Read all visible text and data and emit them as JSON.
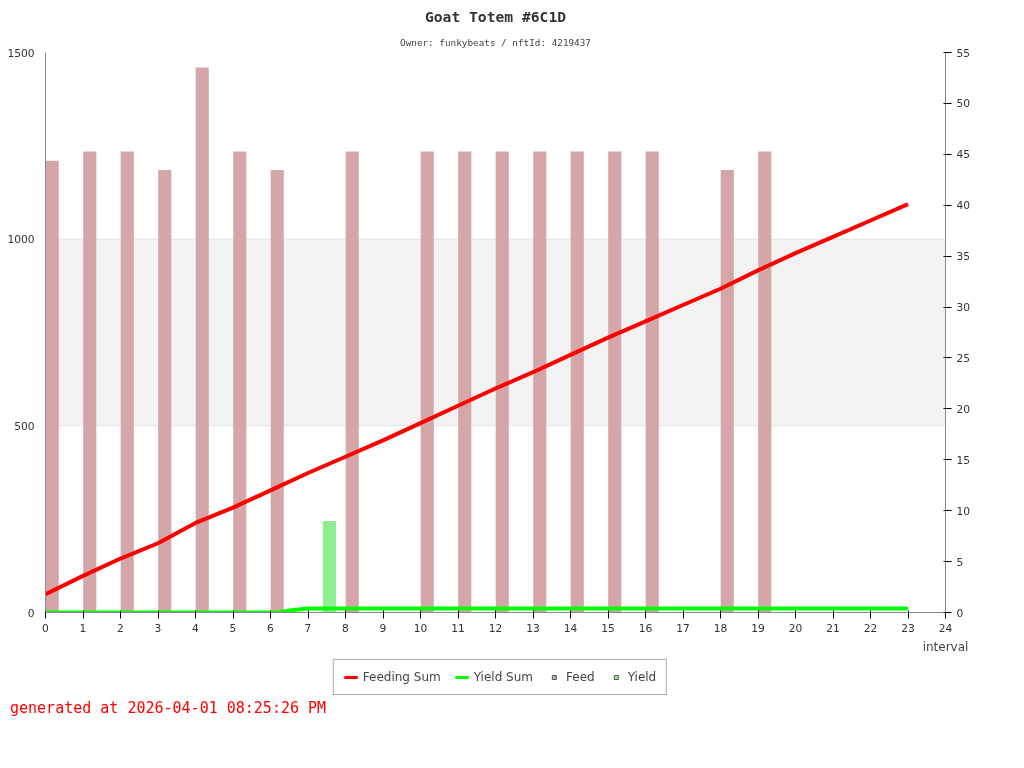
{
  "chart_data": {
    "type": "bar",
    "title": "Goat Totem #6C1D",
    "subtitle": "Owner: funkybeats / nftId: 4219437",
    "xlabel": "interval",
    "annotations": [
      "generated at 2026-04-01 08:25:26 PM"
    ],
    "xlim": [
      0,
      24
    ],
    "xticks": [
      0,
      1,
      2,
      3,
      4,
      5,
      6,
      7,
      8,
      9,
      10,
      11,
      12,
      13,
      14,
      15,
      16,
      17,
      18,
      19,
      20,
      21,
      22,
      23,
      24
    ],
    "ylim": [
      0,
      1500
    ],
    "yticks": [
      0,
      500,
      1000,
      1500
    ],
    "y2lim": [
      0,
      55
    ],
    "y2ticks": [
      0,
      5,
      10,
      15,
      20,
      25,
      30,
      35,
      40,
      45,
      50,
      55
    ],
    "grid": "y",
    "legend": "bottom",
    "bands": [
      {
        "axis": "y",
        "from": 500,
        "to": 1000,
        "color": "#f3f3f3"
      }
    ],
    "series": [
      {
        "name": "Feeding Sum",
        "type": "line",
        "axis": "y2",
        "color": "#ff0000",
        "x": [
          0,
          1,
          2,
          3,
          4,
          5,
          6,
          7,
          8,
          9,
          10,
          11,
          12,
          13,
          14,
          15,
          16,
          17,
          18,
          19,
          20,
          21,
          22,
          23
        ],
        "values": [
          1.8,
          3.6,
          5.3,
          6.8,
          8.8,
          10.3,
          12.0,
          13.7,
          15.3,
          16.9,
          18.6,
          20.3,
          22.0,
          23.6,
          25.3,
          27.0,
          28.6,
          30.2,
          31.8,
          33.6,
          35.3,
          36.9,
          38.5,
          40.1
        ]
      },
      {
        "name": "Yield Sum",
        "type": "line",
        "axis": "y2",
        "color": "#00ff00",
        "x": [
          0,
          6.2,
          6.5,
          7,
          23
        ],
        "values": [
          0,
          0,
          0.2,
          0.4,
          0.4
        ]
      },
      {
        "name": "Feed",
        "color": "#d4a6a8",
        "x": [
          0.18,
          1.18,
          2.18,
          3.18,
          4.18,
          5.18,
          6.18,
          8.18,
          10.18,
          11.18,
          12.18,
          13.18,
          14.18,
          15.18,
          16.18,
          18.18,
          19.18
        ],
        "values": [
          1210,
          1235,
          1235,
          1185,
          1460,
          1235,
          1185,
          1235,
          1235,
          1235,
          1235,
          1235,
          1235,
          1235,
          1235,
          1185,
          1235
        ]
      },
      {
        "name": "Yield",
        "color": "#90ee90",
        "x": [
          7.57
        ],
        "values": [
          245
        ]
      }
    ]
  }
}
